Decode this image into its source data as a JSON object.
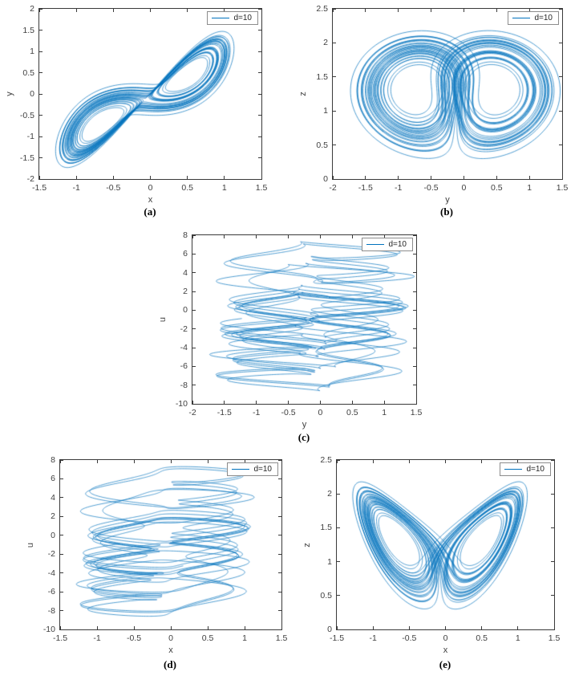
{
  "figure": {
    "background": "#ffffff",
    "line_color": "#0072BD",
    "axis_color": "#3a3a3a",
    "legend_label": "d=10"
  },
  "chart_data": [
    {
      "id": "a",
      "caption": "(a)",
      "type": "line",
      "xlabel": "x",
      "ylabel": "y",
      "xlim": [
        -1.5,
        1.5
      ],
      "ylim": [
        -2,
        2
      ],
      "xticks": [
        -1.5,
        -1,
        -0.5,
        0,
        0.5,
        1,
        1.5
      ],
      "xtick_labels": [
        "-1.5",
        "-1",
        "-0.5",
        "0",
        "0.5",
        "1",
        "1.5"
      ],
      "yticks": [
        -2,
        -1.5,
        -1,
        -0.5,
        0,
        0.5,
        1,
        1.5,
        2
      ],
      "ytick_labels": [
        "-2",
        "-1.5",
        "-1",
        "-0.5",
        "0",
        "0.5",
        "1",
        "1.5",
        "2"
      ],
      "legend": [
        "d=10"
      ],
      "legend_position": "northeast",
      "grid": false,
      "series": [
        {
          "name": "d=10",
          "projection": [
            "x",
            "y"
          ],
          "description": "chaotic attractor phase trajectory (dense diagonal band with switchback hooks), x approx. -1.3 to 1.1, y approx. -1.75 to 1.5"
        }
      ]
    },
    {
      "id": "b",
      "caption": "(b)",
      "type": "line",
      "xlabel": "y",
      "ylabel": "z",
      "xlim": [
        -2,
        1.5
      ],
      "ylim": [
        0,
        2.5
      ],
      "xticks": [
        -2,
        -1.5,
        -1,
        -0.5,
        0,
        0.5,
        1,
        1.5
      ],
      "xtick_labels": [
        "-2",
        "-1.5",
        "-1",
        "-0.5",
        "0",
        "0.5",
        "1",
        "1.5"
      ],
      "yticks": [
        0,
        0.5,
        1,
        1.5,
        2,
        2.5
      ],
      "ytick_labels": [
        "0",
        "0.5",
        "1",
        "1.5",
        "2",
        "2.5"
      ],
      "legend": [
        "d=10"
      ],
      "legend_position": "northeast",
      "grid": false,
      "series": [
        {
          "name": "d=10",
          "projection": [
            "y",
            "z"
          ],
          "description": "double-scroll butterfly attractor, lobes centered near y = -0.55 and y = 0.55, z approx. 0.3 to 2.2"
        }
      ]
    },
    {
      "id": "c",
      "caption": "(c)",
      "type": "line",
      "xlabel": "y",
      "ylabel": "u",
      "xlim": [
        -2,
        1.5
      ],
      "ylim": [
        -10,
        8
      ],
      "xticks": [
        -2,
        -1.5,
        -1,
        -0.5,
        0,
        0.5,
        1,
        1.5
      ],
      "xtick_labels": [
        "-2",
        "-1.5",
        "-1",
        "-0.5",
        "0",
        "0.5",
        "1",
        "1.5"
      ],
      "yticks": [
        -10,
        -8,
        -6,
        -4,
        -2,
        0,
        2,
        4,
        6,
        8
      ],
      "ytick_labels": [
        "-10",
        "-8",
        "-6",
        "-4",
        "-2",
        "0",
        "2",
        "4",
        "6",
        "8"
      ],
      "legend": [
        "d=10"
      ],
      "legend_position": "northeast",
      "grid": false,
      "series": [
        {
          "name": "d=10",
          "projection": [
            "y",
            "u"
          ],
          "description": "stacked wide loops, u slowly drifting between about -8.5 and 7.5 while y oscillates between about -1.7 and 1.5"
        }
      ]
    },
    {
      "id": "d",
      "caption": "(d)",
      "type": "line",
      "xlabel": "x",
      "ylabel": "u",
      "xlim": [
        -1.5,
        1.5
      ],
      "ylim": [
        -10,
        8
      ],
      "xticks": [
        -1.5,
        -1,
        -0.5,
        0,
        0.5,
        1,
        1.5
      ],
      "xtick_labels": [
        "-1.5",
        "-1",
        "-0.5",
        "0",
        "0.5",
        "1",
        "1.5"
      ],
      "yticks": [
        -10,
        -8,
        -6,
        -4,
        -2,
        0,
        2,
        4,
        6,
        8
      ],
      "ytick_labels": [
        "-10",
        "-8",
        "-6",
        "-4",
        "-2",
        "0",
        "2",
        "4",
        "6",
        "8"
      ],
      "legend": [
        "d=10"
      ],
      "legend_position": "northeast",
      "grid": false,
      "series": [
        {
          "name": "d=10",
          "projection": [
            "x",
            "u"
          ],
          "description": "stacked wide loops, u slowly drifting between about -8.5 and 7.5 while x oscillates between about -1.3 and 1.2"
        }
      ]
    },
    {
      "id": "e",
      "caption": "(e)",
      "type": "line",
      "xlabel": "x",
      "ylabel": "z",
      "xlim": [
        -1.5,
        1.5
      ],
      "ylim": [
        0,
        2.5
      ],
      "xticks": [
        -1.5,
        -1,
        -0.5,
        0,
        0.5,
        1,
        1.5
      ],
      "xtick_labels": [
        "-1.5",
        "-1",
        "-0.5",
        "0",
        "0.5",
        "1",
        "1.5"
      ],
      "yticks": [
        0,
        0.5,
        1,
        1.5,
        2,
        2.5
      ],
      "ytick_labels": [
        "0",
        "0.5",
        "1",
        "1.5",
        "2",
        "2.5"
      ],
      "legend": [
        "d=10"
      ],
      "legend_position": "northeast",
      "grid": false,
      "series": [
        {
          "name": "d=10",
          "projection": [
            "x",
            "z"
          ],
          "description": "double-scroll butterfly attractor, lobes centered near x = -0.6 and x = 0.6, z approx. 0.3 to 2.2"
        }
      ]
    }
  ]
}
